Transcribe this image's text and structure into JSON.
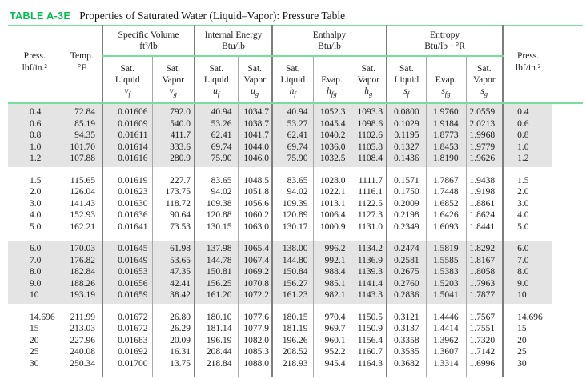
{
  "title": {
    "label": "TABLE A-3E",
    "text": "Properties of Saturated Water (Liquid–Vapor): Pressure Table"
  },
  "header": {
    "press_left": {
      "l1": "Press.",
      "l2": "lbf/in.²"
    },
    "temp": {
      "l1": "Temp.",
      "l2": "°F"
    },
    "press_right": {
      "l1": "Press.",
      "l2": "lbf/in.²"
    },
    "groups": [
      {
        "title": "Specific Volume",
        "unit": "ft³/lb"
      },
      {
        "title": "Internal Energy",
        "unit": "Btu/lb"
      },
      {
        "title": "Enthalpy",
        "unit": "Btu/lb"
      },
      {
        "title": "Entropy",
        "unit": "Btu/lb · °R"
      }
    ],
    "subcols": [
      {
        "l1": "Sat.",
        "l2": "Liquid",
        "sym": "v",
        "sub": "f"
      },
      {
        "l1": "Sat.",
        "l2": "Vapor",
        "sym": "v",
        "sub": "g"
      },
      {
        "l1": "Sat.",
        "l2": "Liquid",
        "sym": "u",
        "sub": "f"
      },
      {
        "l1": "Sat.",
        "l2": "Vapor",
        "sym": "u",
        "sub": "g"
      },
      {
        "l1": "Sat.",
        "l2": "Liquid",
        "sym": "h",
        "sub": "f"
      },
      {
        "l1": "",
        "l2": "Evap.",
        "sym": "h",
        "sub": "fg"
      },
      {
        "l1": "Sat.",
        "l2": "Vapor",
        "sym": "h",
        "sub": "g"
      },
      {
        "l1": "Sat.",
        "l2": "Liquid",
        "sym": "s",
        "sub": "f"
      },
      {
        "l1": "",
        "l2": "Evap.",
        "sym": "s",
        "sub": "fg"
      },
      {
        "l1": "Sat.",
        "l2": "Vapor",
        "sym": "s",
        "sub": "g"
      }
    ]
  },
  "column_keys": [
    "press",
    "temp",
    "vf",
    "vg",
    "uf",
    "ug",
    "hf",
    "hfg",
    "hg",
    "sf",
    "sfg",
    "sg",
    "press"
  ],
  "blocks": [
    {
      "shaded": true,
      "rows": [
        [
          "0.4",
          "72.84",
          "0.01606",
          "792.0",
          "40.94",
          "1034.7",
          "40.94",
          "1052.3",
          "1093.3",
          "0.0800",
          "1.9760",
          "2.0559",
          "0.4"
        ],
        [
          "0.6",
          "85.19",
          "0.01609",
          "540.0",
          "53.26",
          "1038.7",
          "53.27",
          "1045.4",
          "1098.6",
          "0.1029",
          "1.9184",
          "2.0213",
          "0.6"
        ],
        [
          "0.8",
          "94.35",
          "0.01611",
          "411.7",
          "62.41",
          "1041.7",
          "62.41",
          "1040.2",
          "1102.6",
          "0.1195",
          "1.8773",
          "1.9968",
          "0.8"
        ],
        [
          "1.0",
          "101.70",
          "0.01614",
          "333.6",
          "69.74",
          "1044.0",
          "69.74",
          "1036.0",
          "1105.8",
          "0.1327",
          "1.8453",
          "1.9779",
          "1.0"
        ],
        [
          "1.2",
          "107.88",
          "0.01616",
          "280.9",
          "75.90",
          "1046.0",
          "75.90",
          "1032.5",
          "1108.4",
          "0.1436",
          "1.8190",
          "1.9626",
          "1.2"
        ]
      ]
    },
    {
      "shaded": false,
      "rows": [
        [
          "1.5",
          "115.65",
          "0.01619",
          "227.7",
          "83.65",
          "1048.5",
          "83.65",
          "1028.0",
          "1111.7",
          "0.1571",
          "1.7867",
          "1.9438",
          "1.5"
        ],
        [
          "2.0",
          "126.04",
          "0.01623",
          "173.75",
          "94.02",
          "1051.8",
          "94.02",
          "1022.1",
          "1116.1",
          "0.1750",
          "1.7448",
          "1.9198",
          "2.0"
        ],
        [
          "3.0",
          "141.43",
          "0.01630",
          "118.72",
          "109.38",
          "1056.6",
          "109.39",
          "1013.1",
          "1122.5",
          "0.2009",
          "1.6852",
          "1.8861",
          "3.0"
        ],
        [
          "4.0",
          "152.93",
          "0.01636",
          "90.64",
          "120.88",
          "1060.2",
          "120.89",
          "1006.4",
          "1127.3",
          "0.2198",
          "1.6426",
          "1.8624",
          "4.0"
        ],
        [
          "5.0",
          "162.21",
          "0.01641",
          "73.53",
          "130.15",
          "1063.0",
          "130.17",
          "1000.9",
          "1131.0",
          "0.2349",
          "1.6093",
          "1.8441",
          "5.0"
        ]
      ]
    },
    {
      "shaded": true,
      "rows": [
        [
          "6.0",
          "170.03",
          "0.01645",
          "61.98",
          "137.98",
          "1065.4",
          "138.00",
          "996.2",
          "1134.2",
          "0.2474",
          "1.5819",
          "1.8292",
          "6.0"
        ],
        [
          "7.0",
          "176.82",
          "0.01649",
          "53.65",
          "144.78",
          "1067.4",
          "144.80",
          "992.1",
          "1136.9",
          "0.2581",
          "1.5585",
          "1.8167",
          "7.0"
        ],
        [
          "8.0",
          "182.84",
          "0.01653",
          "47.35",
          "150.81",
          "1069.2",
          "150.84",
          "988.4",
          "1139.3",
          "0.2675",
          "1.5383",
          "1.8058",
          "8.0"
        ],
        [
          "9.0",
          "188.26",
          "0.01656",
          "42.41",
          "156.25",
          "1070.8",
          "156.27",
          "985.1",
          "1141.4",
          "0.2760",
          "1.5203",
          "1.7963",
          "9.0"
        ],
        [
          "10",
          "193.19",
          "0.01659",
          "38.42",
          "161.20",
          "1072.2",
          "161.23",
          "982.1",
          "1143.3",
          "0.2836",
          "1.5041",
          "1.7877",
          "10"
        ]
      ]
    },
    {
      "shaded": false,
      "rows": [
        [
          "14.696",
          "211.99",
          "0.01672",
          "26.80",
          "180.10",
          "1077.6",
          "180.15",
          "970.4",
          "1150.5",
          "0.3121",
          "1.4446",
          "1.7567",
          "14.696"
        ],
        [
          "15",
          "213.03",
          "0.01672",
          "26.29",
          "181.14",
          "1077.9",
          "181.19",
          "969.7",
          "1150.9",
          "0.3137",
          "1.4414",
          "1.7551",
          "15"
        ],
        [
          "20",
          "227.96",
          "0.01683",
          "20.09",
          "196.19",
          "1082.0",
          "196.26",
          "960.1",
          "1156.4",
          "0.3358",
          "1.3962",
          "1.7320",
          "20"
        ],
        [
          "25",
          "240.08",
          "0.01692",
          "16.31",
          "208.44",
          "1085.3",
          "208.52",
          "952.2",
          "1160.7",
          "0.3535",
          "1.3607",
          "1.7142",
          "25"
        ],
        [
          "30",
          "250.34",
          "0.01700",
          "13.75",
          "218.84",
          "1088.0",
          "218.93",
          "945.4",
          "1164.3",
          "0.3682",
          "1.3314",
          "1.6996",
          "30"
        ]
      ]
    }
  ]
}
